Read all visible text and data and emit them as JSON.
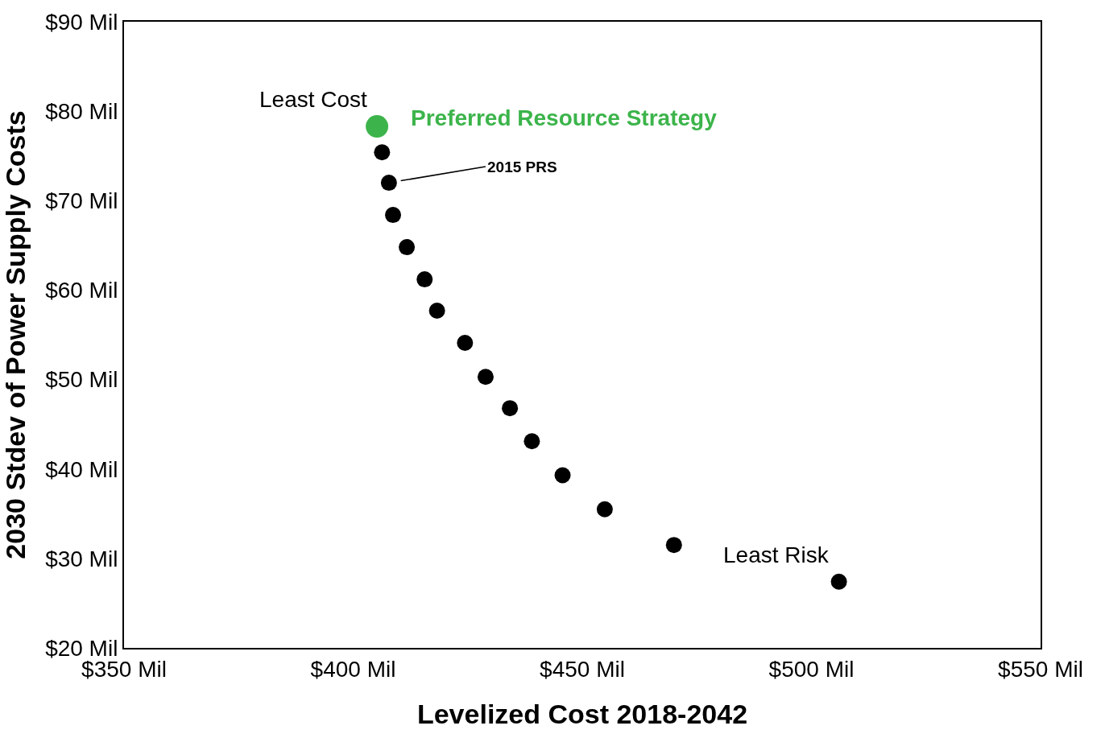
{
  "chart_data": {
    "type": "scatter",
    "xlabel": "Levelized Cost 2018-2042",
    "ylabel": "2030 Stdev of Power Supply Costs",
    "series": [
      {
        "color": "#3cb44b",
        "x": [
          405.2
        ],
        "values": [
          78.3
        ]
      },
      {
        "color": "#000000",
        "x": [
          406.3,
          407.8,
          408.7,
          411.7,
          415.6,
          418.3,
          424.4,
          428.9,
          434.2,
          439.0,
          445.7,
          454.9,
          470.0,
          506.0
        ],
        "values": [
          75.4,
          72.0,
          68.4,
          64.8,
          61.2,
          57.7,
          54.1,
          50.3,
          46.8,
          43.1,
          39.3,
          35.5,
          31.5,
          27.4
        ]
      }
    ],
    "marker": "circle",
    "legend": false,
    "xlim": [
      350,
      550
    ],
    "xticks": [
      {
        "value": 350,
        "label": "$350 Mil"
      },
      {
        "value": 400,
        "label": "$400 Mil"
      },
      {
        "value": 450,
        "label": "$450 Mil"
      },
      {
        "value": 500,
        "label": "$500 Mil"
      },
      {
        "value": 550,
        "label": "$550 Mil"
      }
    ],
    "ylim": [
      20,
      90
    ],
    "yticks": [
      {
        "value": 20,
        "label": "$20 Mil"
      },
      {
        "value": 30,
        "label": "$30 Mil"
      },
      {
        "value": 40,
        "label": "$40 Mil"
      },
      {
        "value": 50,
        "label": "$50 Mil"
      },
      {
        "value": 60,
        "label": "$60 Mil"
      },
      {
        "value": 70,
        "label": "$70 Mil"
      },
      {
        "value": 80,
        "label": "$80 Mil"
      },
      {
        "value": 90,
        "label": "$90 Mil"
      }
    ],
    "annotations": [
      {
        "text": "Least Cost",
        "x": 405.2,
        "y": 78.3
      },
      {
        "text": "Preferred Resource Strategy",
        "x": 405.2,
        "y": 78.3
      },
      {
        "text": "2015 PRS",
        "x": 407.8,
        "y": 72.0
      },
      {
        "text": "Least Risk",
        "x": 506.0,
        "y": 27.4
      }
    ]
  }
}
